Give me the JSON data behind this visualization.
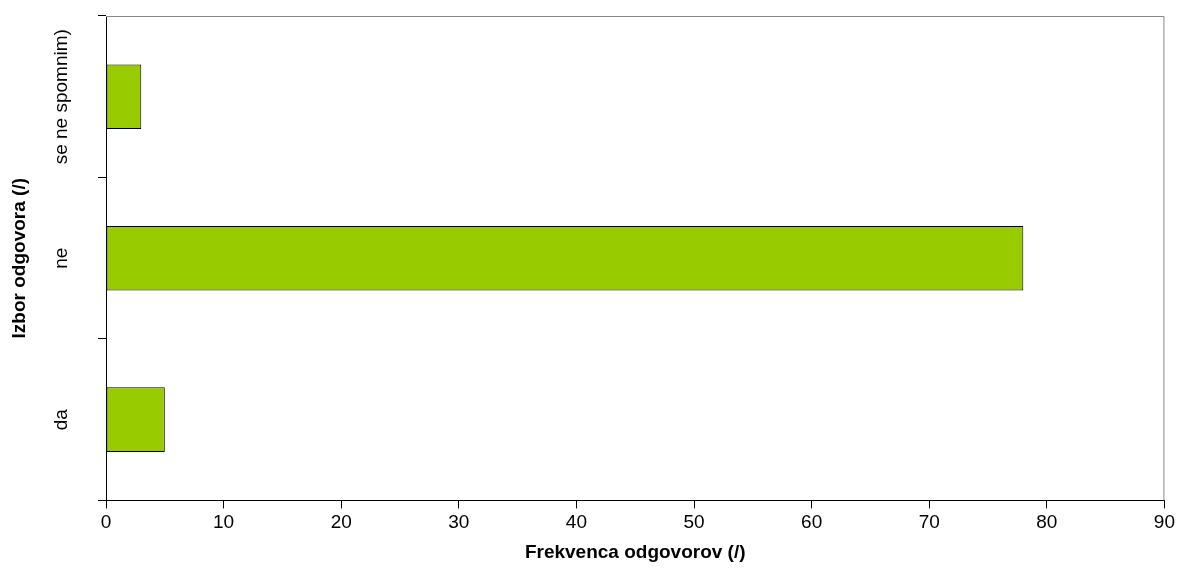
{
  "chart_data": {
    "type": "bar",
    "orientation": "horizontal",
    "xlabel": "Frekvenca odgovorov (/)",
    "ylabel": "Izbor odgovora (/)",
    "categories": [
      "se ne spomnim)",
      "ne",
      "da"
    ],
    "values": [
      3,
      78,
      5
    ],
    "color": "#99cc00",
    "xlim": [
      0,
      90
    ],
    "xticks": [
      0,
      10,
      20,
      30,
      40,
      50,
      60,
      70,
      80,
      90
    ],
    "grid": false,
    "legend": false
  }
}
